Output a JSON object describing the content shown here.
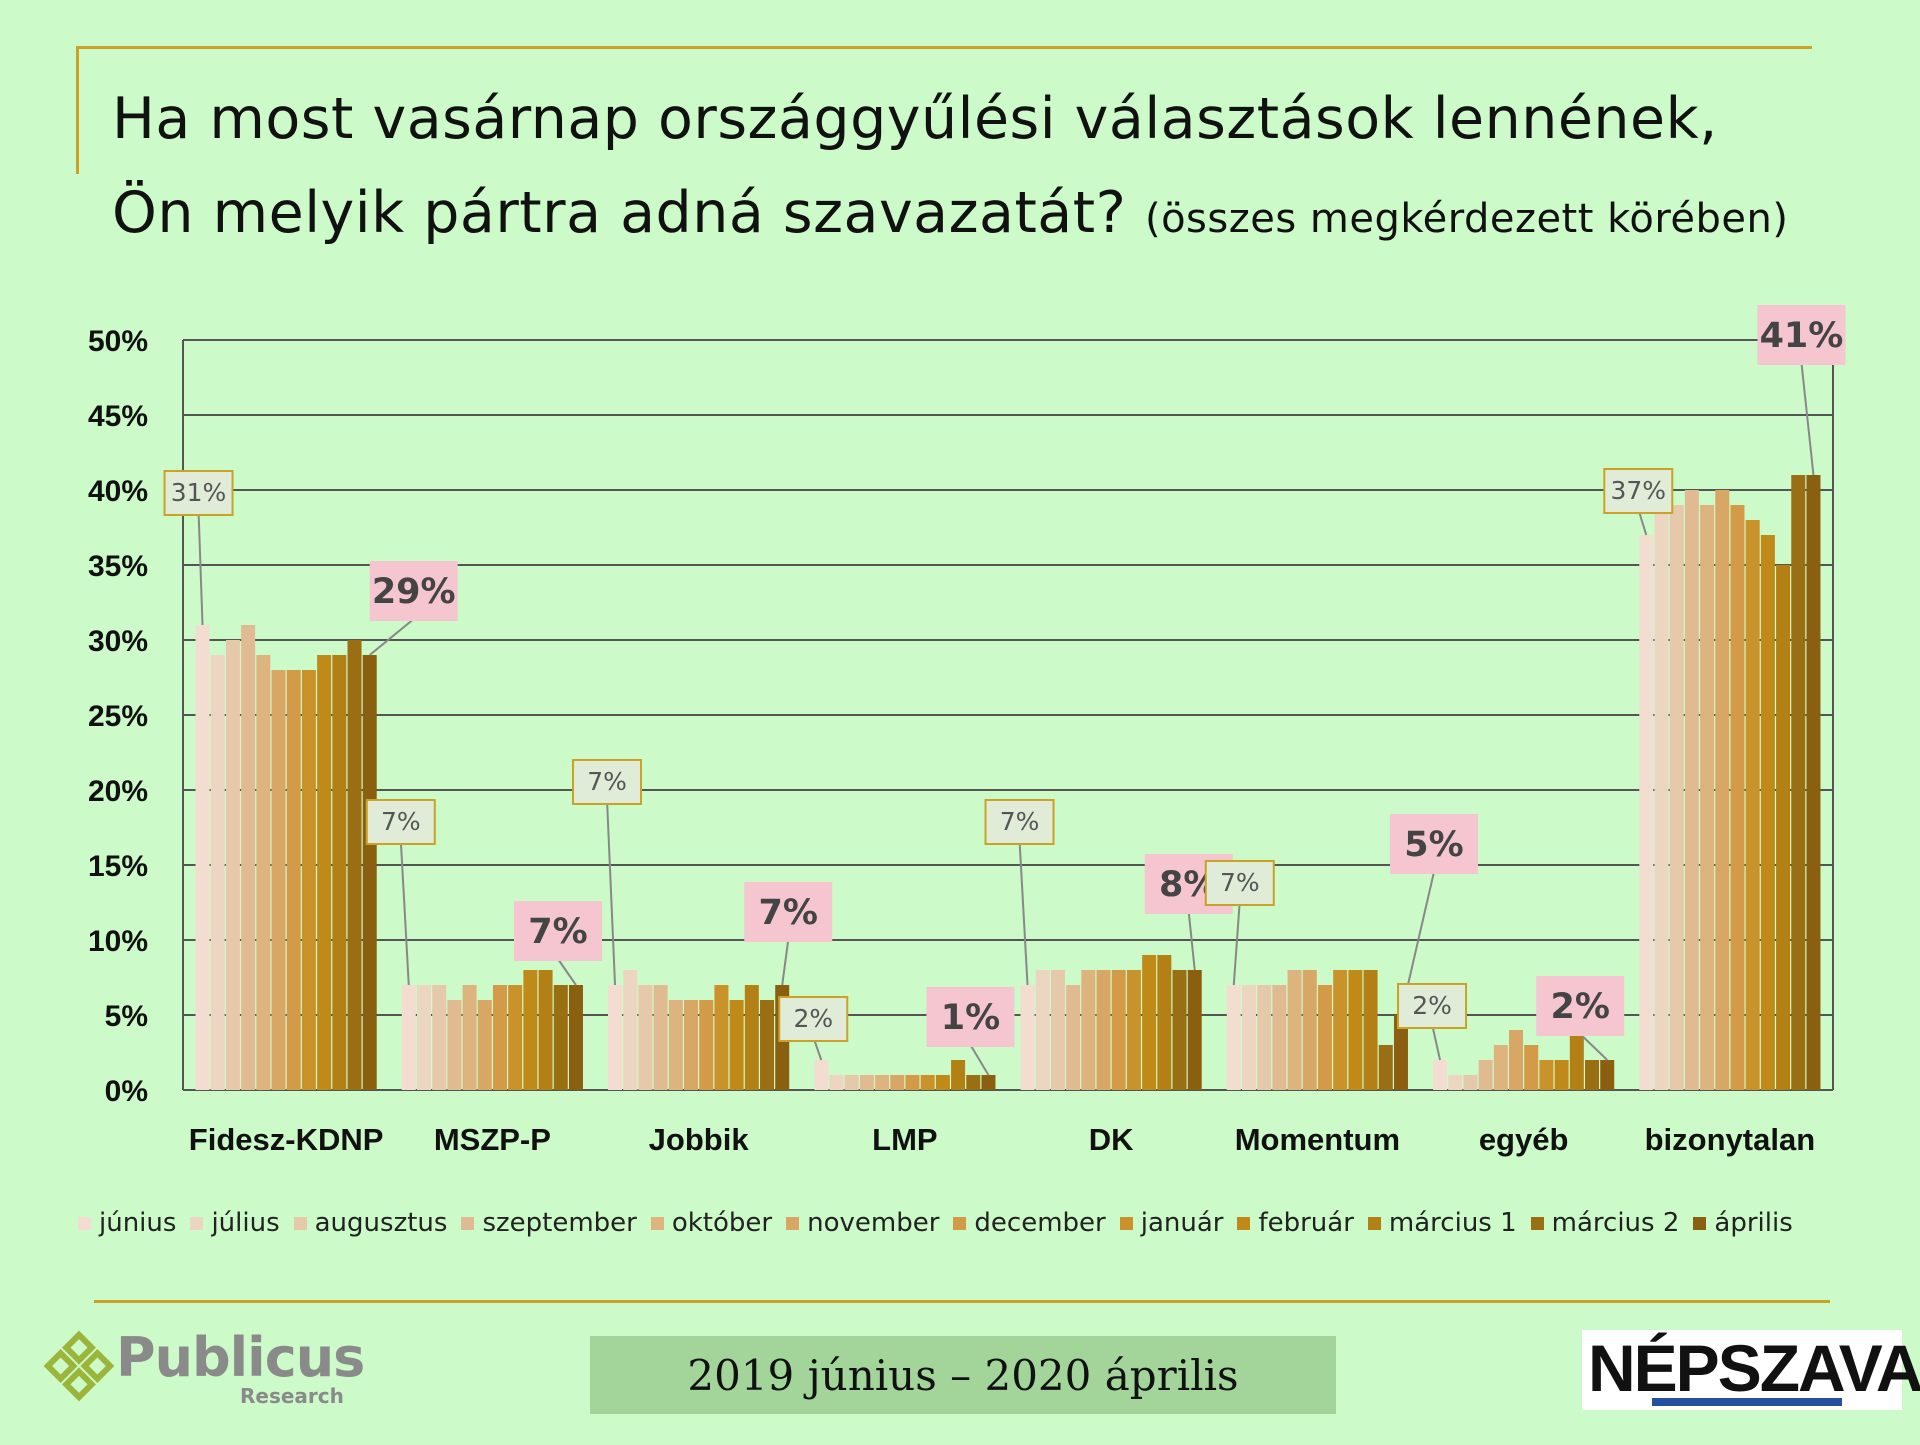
{
  "title": {
    "main": "Ha most vasárnap országgyűlési választások lennének, Ön melyik pártra adná szavazatát?",
    "line1": "Ha most vasárnap országgyűlési választások lennének,",
    "line2": "Ön melyik pártra adná szavazatát?",
    "subtitle": "(összes megkérdezett körében)"
  },
  "footer": {
    "date_range": "2019 június – 2020 április",
    "publicus_name": "Publicus",
    "publicus_sub": "Research",
    "nepszava": "NÉPSZAVA"
  },
  "colors": {
    "background": "#ccfac8",
    "accent": "#c9a227",
    "callout_bg": "#f5c6d0",
    "first_label_bg": "#e0ecd8",
    "first_label_border": "#c9a227",
    "series": [
      "#f2ddd0",
      "#ecd6c1",
      "#e6c9aa",
      "#e0bb91",
      "#ddb37e",
      "#d8a665",
      "#d39b48",
      "#c9922a",
      "#c08a18",
      "#b28014",
      "#9a6e12",
      "#8a5f10"
    ]
  },
  "chart_data": {
    "type": "bar",
    "categories": [
      "Fidesz-KDNP",
      "MSZP-P",
      "Jobbik",
      "LMP",
      "DK",
      "Momentum",
      "egyéb",
      "bizonytalan"
    ],
    "series": [
      {
        "name": "június",
        "values": [
          31,
          7,
          7,
          2,
          7,
          7,
          2,
          37
        ]
      },
      {
        "name": "július",
        "values": [
          29,
          7,
          8,
          1,
          8,
          7,
          1,
          39
        ]
      },
      {
        "name": "augusztus",
        "values": [
          30,
          7,
          7,
          1,
          8,
          7,
          1,
          39
        ]
      },
      {
        "name": "szeptember",
        "values": [
          31,
          6,
          7,
          1,
          7,
          7,
          2,
          40
        ]
      },
      {
        "name": "október",
        "values": [
          29,
          7,
          6,
          1,
          8,
          8,
          3,
          39
        ]
      },
      {
        "name": "november",
        "values": [
          28,
          6,
          6,
          1,
          8,
          8,
          4,
          40
        ]
      },
      {
        "name": "december",
        "values": [
          28,
          7,
          6,
          1,
          8,
          7,
          3,
          39
        ]
      },
      {
        "name": "január",
        "values": [
          28,
          7,
          7,
          1,
          8,
          8,
          2,
          38
        ]
      },
      {
        "name": "február",
        "values": [
          29,
          8,
          6,
          1,
          9,
          8,
          2,
          37
        ]
      },
      {
        "name": "március 1",
        "values": [
          29,
          8,
          7,
          2,
          9,
          8,
          4,
          35
        ]
      },
      {
        "name": "március 2",
        "values": [
          30,
          7,
          6,
          1,
          8,
          3,
          2,
          41
        ]
      },
      {
        "name": "április",
        "values": [
          29,
          7,
          7,
          1,
          8,
          5,
          2,
          41
        ]
      }
    ],
    "first_labels": [
      "31%",
      "7%",
      "7%",
      "2%",
      "7%",
      "7%",
      "2%",
      "37%"
    ],
    "last_labels": [
      "29%",
      "7%",
      "7%",
      "1%",
      "8%",
      "5%",
      "2%",
      "41%"
    ],
    "yticks": [
      "0%",
      "5%",
      "10%",
      "15%",
      "20%",
      "25%",
      "30%",
      "35%",
      "40%",
      "45%",
      "50%"
    ],
    "ylim": [
      0,
      50
    ],
    "grid": true,
    "legend": "bottom",
    "xlabel": "",
    "ylabel": ""
  }
}
